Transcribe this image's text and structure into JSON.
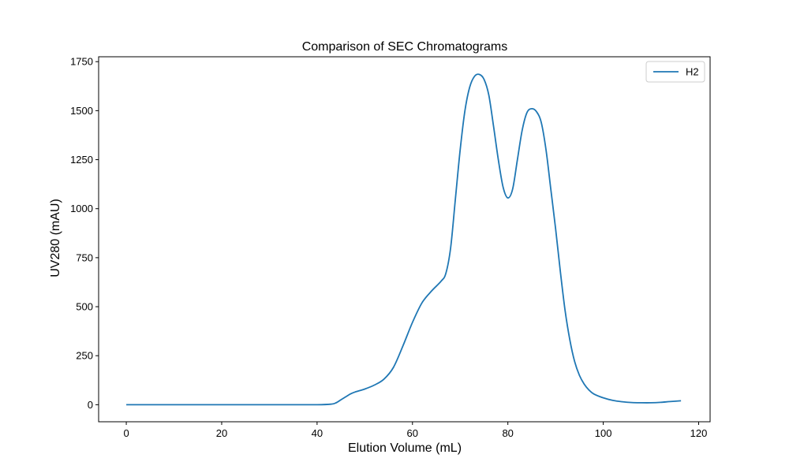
{
  "chart_data": {
    "type": "line",
    "title": "Comparison of SEC Chromatograms",
    "xlabel": "Elution Volume (mL)",
    "ylabel": "UV280 (mAU)",
    "xlim": [
      -5.8,
      122.4
    ],
    "ylim": [
      -87,
      1775
    ],
    "xticks": [
      0,
      20,
      40,
      60,
      80,
      100,
      120
    ],
    "yticks": [
      0,
      250,
      500,
      750,
      1000,
      1250,
      1500,
      1750
    ],
    "grid": false,
    "legend_position": "top-right",
    "series": [
      {
        "name": "H2",
        "color": "#1f77b4",
        "x": [
          0,
          10,
          20,
          30,
          40,
          43,
          44,
          45,
          46,
          47,
          48,
          50,
          52,
          54,
          56,
          58,
          60,
          62,
          64,
          66,
          67,
          68,
          69,
          70,
          71,
          72,
          73,
          74,
          75,
          76,
          77,
          78,
          79,
          80,
          81,
          82,
          83,
          84,
          85,
          86,
          87,
          88,
          89,
          90,
          91,
          92,
          93,
          94,
          95,
          96,
          97,
          98,
          100,
          102,
          104,
          106,
          108,
          110,
          112,
          114,
          116.3
        ],
        "y": [
          0,
          0,
          0,
          0,
          0,
          3,
          10,
          25,
          40,
          55,
          65,
          80,
          100,
          130,
          190,
          300,
          420,
          520,
          580,
          630,
          670,
          800,
          1050,
          1300,
          1500,
          1620,
          1675,
          1685,
          1660,
          1580,
          1420,
          1250,
          1110,
          1055,
          1100,
          1250,
          1400,
          1490,
          1510,
          1495,
          1440,
          1300,
          1100,
          900,
          680,
          480,
          330,
          220,
          150,
          105,
          75,
          55,
          35,
          22,
          15,
          11,
          10,
          10,
          12,
          16,
          20
        ]
      }
    ]
  }
}
